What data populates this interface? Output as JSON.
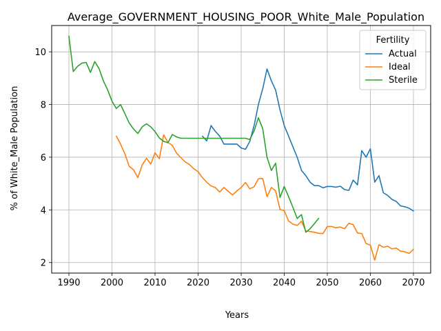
{
  "chart_data": {
    "type": "line",
    "title": "Average_GOVERNMENT_HOUSING_POOR_White_Male_Population",
    "xlabel": "Years",
    "ylabel": "% of White_Male Population",
    "xlim": [
      1986,
      2074
    ],
    "ylim": [
      1.6,
      11.0
    ],
    "xticks": [
      1990,
      2000,
      2010,
      2020,
      2030,
      2040,
      2050,
      2060,
      2070
    ],
    "yticks": [
      2,
      4,
      6,
      8,
      10
    ],
    "grid": true,
    "legend": {
      "title": "Fertility",
      "placement": "top-right"
    },
    "series": [
      {
        "name": "Actual",
        "color": "#1f77b4",
        "x": [
          2021,
          2022,
          2023,
          2024,
          2025,
          2026,
          2027,
          2028,
          2029,
          2030,
          2031,
          2032,
          2033,
          2034,
          2035,
          2036,
          2037,
          2038,
          2039,
          2040,
          2041,
          2042,
          2043,
          2044,
          2045,
          2046,
          2047,
          2048,
          2049,
          2050,
          2051,
          2052,
          2053,
          2054,
          2055,
          2056,
          2057,
          2058,
          2059,
          2060,
          2061,
          2062,
          2063,
          2064,
          2065,
          2066,
          2067,
          2068,
          2069,
          2070
        ],
        "y": [
          6.8,
          6.62,
          7.2,
          6.98,
          6.8,
          6.5,
          6.5,
          6.5,
          6.5,
          6.35,
          6.3,
          6.6,
          7.2,
          8.0,
          8.6,
          9.35,
          8.9,
          8.55,
          7.8,
          7.2,
          6.8,
          6.4,
          6.0,
          5.5,
          5.3,
          5.05,
          4.92,
          4.92,
          4.84,
          4.89,
          4.89,
          4.86,
          4.9,
          4.77,
          4.74,
          5.13,
          4.95,
          6.25,
          6.0,
          6.32,
          5.05,
          5.3,
          4.65,
          4.55,
          4.4,
          4.32,
          4.15,
          4.12,
          4.06,
          3.96
        ]
      },
      {
        "name": "Ideal",
        "color": "#ff7f0e",
        "x": [
          2001,
          2002,
          2003,
          2004,
          2005,
          2006,
          2007,
          2008,
          2009,
          2010,
          2011,
          2012,
          2013,
          2014,
          2015,
          2016,
          2017,
          2018,
          2019,
          2020,
          2021,
          2022,
          2023,
          2024,
          2025,
          2026,
          2027,
          2028,
          2029,
          2030,
          2031,
          2032,
          2033,
          2034,
          2035,
          2036,
          2037,
          2038,
          2039,
          2040,
          2041,
          2042,
          2043,
          2044,
          2045,
          2046,
          2047,
          2048,
          2049,
          2050,
          2051,
          2052,
          2053,
          2054,
          2055,
          2056,
          2057,
          2058,
          2059,
          2060,
          2061,
          2062,
          2063,
          2064,
          2065,
          2066,
          2067,
          2068,
          2069,
          2070
        ],
        "y": [
          6.8,
          6.5,
          6.12,
          5.65,
          5.52,
          5.22,
          5.7,
          5.96,
          5.74,
          6.17,
          5.94,
          6.85,
          6.56,
          6.45,
          6.15,
          5.98,
          5.82,
          5.72,
          5.56,
          5.45,
          5.22,
          5.05,
          4.91,
          4.85,
          4.68,
          4.85,
          4.7,
          4.57,
          4.72,
          4.85,
          5.04,
          4.8,
          4.88,
          5.18,
          5.19,
          4.5,
          4.85,
          4.72,
          4.02,
          3.97,
          3.58,
          3.46,
          3.41,
          3.57,
          3.2,
          3.18,
          3.15,
          3.11,
          3.1,
          3.37,
          3.37,
          3.32,
          3.35,
          3.28,
          3.49,
          3.44,
          3.12,
          3.1,
          2.72,
          2.66,
          2.09,
          2.68,
          2.58,
          2.62,
          2.52,
          2.55,
          2.43,
          2.41,
          2.35,
          2.5
        ]
      },
      {
        "name": "Sterile",
        "color": "#2ca02c",
        "x": [
          1990,
          1991,
          1992,
          1993,
          1994,
          1995,
          1996,
          1997,
          1998,
          1999,
          2000,
          2001,
          2002,
          2003,
          2004,
          2005,
          2006,
          2007,
          2008,
          2009,
          2010,
          2011,
          2012,
          2013,
          2014,
          2015,
          2016,
          2017,
          2018,
          2019,
          2020,
          2021,
          2022,
          2023,
          2024,
          2025,
          2026,
          2027,
          2028,
          2029,
          2030,
          2031,
          2032,
          2033,
          2034,
          2035,
          2036,
          2037,
          2038,
          2039,
          2040,
          2041,
          2042,
          2043,
          2044,
          2045,
          2046,
          2047,
          2048
        ],
        "y": [
          10.6,
          9.25,
          9.45,
          9.57,
          9.6,
          9.22,
          9.63,
          9.36,
          8.9,
          8.55,
          8.13,
          7.85,
          8.0,
          7.65,
          7.3,
          7.07,
          6.9,
          7.15,
          7.27,
          7.15,
          6.97,
          6.73,
          6.6,
          6.55,
          6.86,
          6.77,
          6.72,
          6.72,
          6.72,
          6.72,
          6.72,
          6.72,
          6.72,
          6.72,
          6.72,
          6.72,
          6.72,
          6.72,
          6.72,
          6.72,
          6.72,
          6.72,
          6.67,
          7.0,
          7.5,
          7.08,
          6.0,
          5.5,
          5.77,
          4.47,
          4.89,
          4.5,
          4.1,
          3.67,
          3.82,
          3.15,
          3.28,
          3.48,
          3.68
        ]
      }
    ]
  }
}
